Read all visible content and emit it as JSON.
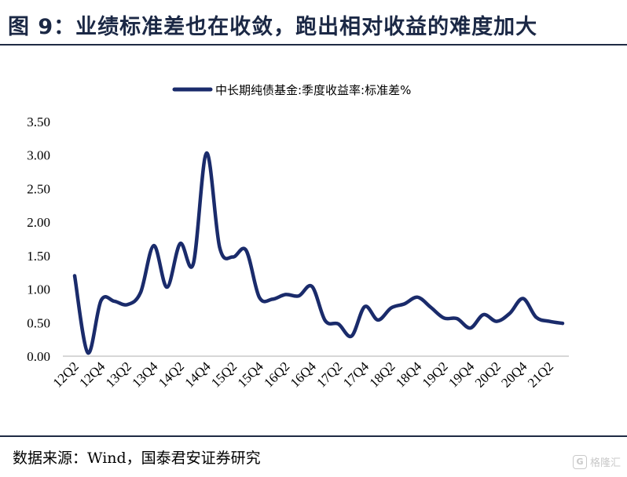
{
  "header": {
    "title": "图 9：业绩标准差也在收敛，跑出相对收益的难度加大"
  },
  "footer": {
    "source": "数据来源：Wind，国泰君安证券研究",
    "watermark_text": "格隆汇",
    "watermark_badge": "G"
  },
  "chart_data": {
    "type": "line",
    "title": "",
    "xlabel": "",
    "ylabel": "",
    "ylim": [
      0,
      3.5
    ],
    "yticks": [
      "0.00",
      "0.50",
      "1.00",
      "1.50",
      "2.00",
      "2.50",
      "3.00",
      "3.50"
    ],
    "grid": false,
    "legend_position": "top-center",
    "categories": [
      "12Q2",
      "12Q3",
      "12Q4",
      "13Q1",
      "13Q2",
      "13Q3",
      "13Q4",
      "14Q1",
      "14Q2",
      "14Q3",
      "14Q4",
      "15Q1",
      "15Q2",
      "15Q3",
      "15Q4",
      "16Q1",
      "16Q2",
      "16Q3",
      "16Q4",
      "17Q1",
      "17Q2",
      "17Q3",
      "17Q4",
      "18Q1",
      "18Q2",
      "18Q3",
      "18Q4",
      "19Q1",
      "19Q2",
      "19Q3",
      "19Q4",
      "20Q1",
      "20Q2",
      "20Q3",
      "20Q4",
      "21Q1",
      "21Q2",
      "21Q3"
    ],
    "xtick_labels": [
      "12Q2",
      "12Q4",
      "13Q2",
      "13Q4",
      "14Q2",
      "14Q4",
      "15Q2",
      "15Q4",
      "16Q2",
      "16Q4",
      "17Q2",
      "17Q4",
      "18Q2",
      "18Q4",
      "19Q2",
      "19Q4",
      "20Q2",
      "20Q4",
      "21Q2"
    ],
    "series": [
      {
        "name": "中长期纯债基金:季度收益率:标准差%",
        "color": "#1a2b6b",
        "values": [
          1.2,
          0.05,
          0.83,
          0.82,
          0.77,
          0.95,
          1.65,
          1.03,
          1.68,
          1.38,
          3.03,
          1.62,
          1.48,
          1.58,
          0.88,
          0.85,
          0.92,
          0.9,
          1.04,
          0.53,
          0.48,
          0.3,
          0.74,
          0.54,
          0.72,
          0.78,
          0.88,
          0.73,
          0.57,
          0.56,
          0.42,
          0.62,
          0.52,
          0.64,
          0.86,
          0.58,
          0.52,
          0.49
        ]
      }
    ]
  }
}
